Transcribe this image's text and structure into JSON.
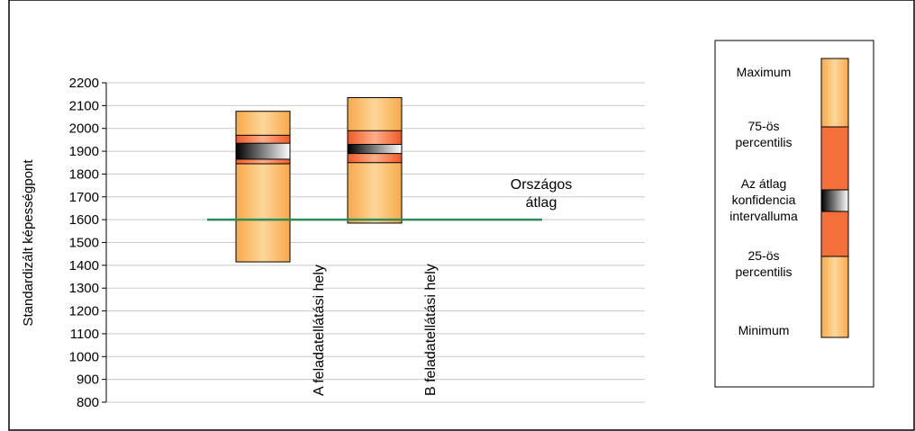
{
  "top_caption": "",
  "chart_data": {
    "type": "boxplot",
    "title": "",
    "xlabel": "",
    "ylabel": "Standardizált képességpont",
    "ylim": [
      800,
      2200
    ],
    "yticks": [
      800,
      900,
      1000,
      1100,
      1200,
      1300,
      1400,
      1500,
      1600,
      1700,
      1800,
      1900,
      2000,
      2100,
      2200
    ],
    "grid": true,
    "categories": [
      "A feladatellátási hely",
      "B feladatellátási hely"
    ],
    "boxes": [
      {
        "category": "A feladatellátási hely",
        "min": 1415,
        "p25": 1845,
        "ci_low": 1865,
        "ci_high": 1935,
        "p75": 1970,
        "max": 2075
      },
      {
        "category": "B feladatellátási hely",
        "min": 1585,
        "p25": 1850,
        "ci_low": 1890,
        "ci_high": 1930,
        "p75": 1990,
        "max": 2135
      }
    ],
    "reference_line": {
      "label_line1": "Országos",
      "label_line2": "átlag",
      "value": 1600,
      "color": "#2e8b57"
    },
    "colors": {
      "outer": "#f9a94b",
      "outer_light": "#fcd79a",
      "inner": "#f05a28",
      "inner_light": "#fdae8a",
      "ci_dark": "#000000",
      "ci_light": "#ffffff"
    },
    "legend": {
      "position": "right",
      "items": [
        "Maximum",
        "75-ös percentilis",
        "Az átlag konfidencia intervalluma",
        "25-ös percentilis",
        "Minimum"
      ]
    }
  }
}
